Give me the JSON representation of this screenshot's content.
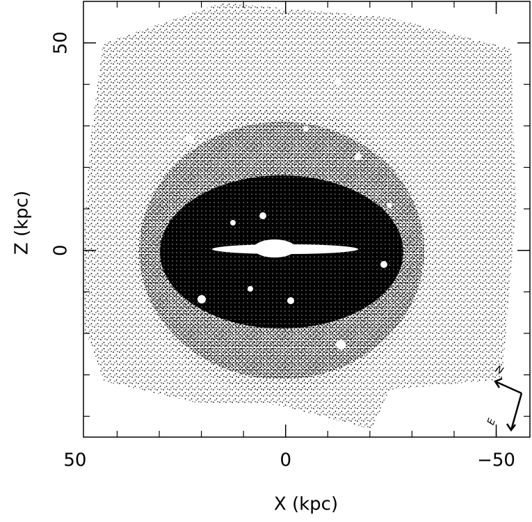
{
  "chart_data": {
    "type": "scatter",
    "x_label": "X (kpc)",
    "y_label": "Z (kpc)",
    "xlim": [
      48,
      -58
    ],
    "ylim": [
      -45,
      60
    ],
    "xticks": [
      50,
      0,
      {
        "value": -50,
        "label": "−50"
      }
    ],
    "yticks": [
      0,
      50
    ],
    "xticks_minor": [
      40,
      30,
      20,
      10,
      -10,
      -20,
      -30,
      -40,
      -50
    ],
    "yticks_minor": [
      -40,
      -30,
      -20,
      -10,
      10,
      20,
      30,
      40
    ],
    "compass": {
      "north": "N",
      "east": "E"
    },
    "color": "#000000"
  }
}
